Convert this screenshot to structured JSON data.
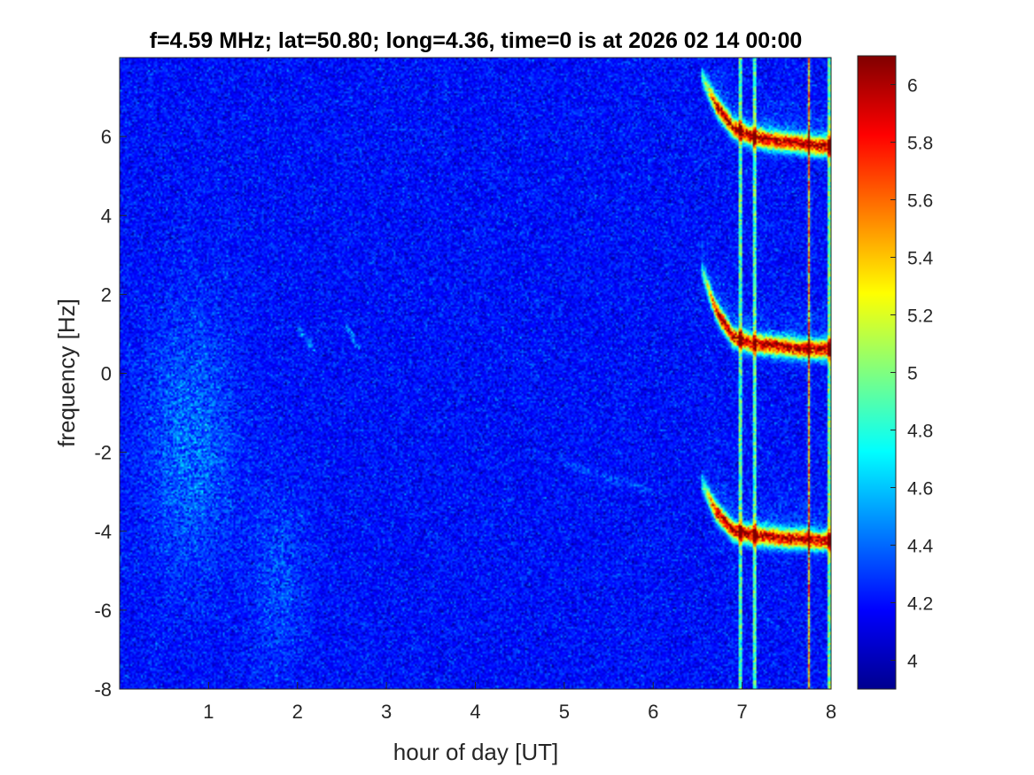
{
  "chart_data": {
    "type": "heatmap",
    "title": "f=4.59 MHz;  lat=50.80; long=4.36, time=0 is at 2026 02 14 00:00",
    "xlabel": "hour of day [UT]",
    "ylabel": "frequency [Hz]",
    "xlim": [
      0,
      8
    ],
    "ylim": [
      -8,
      8
    ],
    "x_ticks": [
      "1",
      "2",
      "3",
      "4",
      "5",
      "6",
      "7",
      "8"
    ],
    "y_ticks": [
      "-8",
      "-6",
      "-4",
      "-2",
      "0",
      "2",
      "4",
      "6"
    ],
    "colorbar": {
      "colormap": "jet",
      "clim": [
        3.9,
        6.1
      ],
      "ticks": [
        "4",
        "4.2",
        "4.4",
        "4.6",
        "4.8",
        "5",
        "5.2",
        "5.4",
        "5.6",
        "5.8",
        "6"
      ]
    },
    "background_level": 4.2,
    "features": [
      {
        "kind": "curve",
        "x": [
          6.55,
          6.7,
          6.9,
          7.1,
          7.3,
          7.5,
          7.7,
          7.85,
          8.0
        ],
        "y": [
          7.5,
          6.8,
          6.2,
          6.0,
          5.9,
          5.85,
          5.8,
          5.75,
          5.75
        ],
        "level": 6.0
      },
      {
        "kind": "curve",
        "x": [
          6.55,
          6.7,
          6.9,
          7.1,
          7.3,
          7.5,
          7.7,
          7.85,
          8.0
        ],
        "y": [
          2.6,
          1.6,
          0.9,
          0.75,
          0.7,
          0.65,
          0.6,
          0.6,
          0.6
        ],
        "level": 6.0
      },
      {
        "kind": "curve",
        "x": [
          6.55,
          6.7,
          6.9,
          7.1,
          7.3,
          7.5,
          7.7,
          7.85,
          8.0
        ],
        "y": [
          -2.8,
          -3.5,
          -4.0,
          -4.1,
          -4.15,
          -4.2,
          -4.2,
          -4.25,
          -4.25
        ],
        "level": 6.0
      },
      {
        "kind": "vertical_line",
        "x": 6.98,
        "level": 5.8
      },
      {
        "kind": "vertical_line",
        "x": 7.14,
        "level": 5.8
      },
      {
        "kind": "vertical_line",
        "x": 7.75,
        "level": 5.7
      },
      {
        "kind": "vertical_line",
        "x": 7.98,
        "level": 5.9
      },
      {
        "kind": "diffuse_band",
        "x": [
          0.3,
          1.3
        ],
        "y": [
          -5,
          1.5
        ],
        "level": 4.5
      },
      {
        "kind": "diffuse_band",
        "x": [
          1.5,
          2.1
        ],
        "y": [
          -7.5,
          -3
        ],
        "level": 4.4
      },
      {
        "kind": "streak",
        "x": [
          2.0,
          2.2
        ],
        "y": [
          1.2,
          0.5
        ],
        "level": 4.6
      },
      {
        "kind": "streak",
        "x": [
          2.55,
          2.7
        ],
        "y": [
          1.2,
          0.6
        ],
        "level": 4.6
      },
      {
        "kind": "streak",
        "x": [
          5.0,
          6.0
        ],
        "y": [
          -2.3,
          -3.0
        ],
        "level": 4.4
      }
    ]
  }
}
